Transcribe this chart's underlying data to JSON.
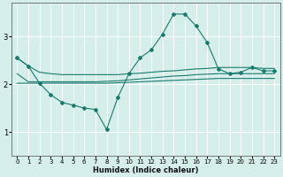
{
  "xlabel": "Humidex (Indice chaleur)",
  "bg_color": "#d6eeea",
  "line_color": "#1a7a6e",
  "grid_color": "#ffffff",
  "xlim": [
    -0.5,
    23.5
  ],
  "ylim": [
    0.5,
    3.7
  ],
  "xticks": [
    0,
    1,
    2,
    3,
    4,
    5,
    6,
    7,
    8,
    9,
    10,
    11,
    12,
    13,
    14,
    15,
    16,
    17,
    18,
    19,
    20,
    21,
    22,
    23
  ],
  "yticks": [
    1,
    2,
    3
  ],
  "main_line": {
    "x": [
      0,
      1,
      2,
      3,
      4,
      5,
      6,
      7,
      8,
      9,
      10,
      11,
      12,
      13,
      14,
      15,
      16,
      17,
      18,
      19,
      20,
      21,
      22,
      23
    ],
    "y": [
      2.55,
      2.38,
      2.02,
      1.78,
      1.62,
      1.56,
      1.5,
      1.47,
      1.05,
      1.72,
      2.22,
      2.55,
      2.72,
      3.05,
      3.47,
      3.47,
      3.22,
      2.87,
      2.32,
      2.22,
      2.25,
      2.35,
      2.28,
      2.28
    ]
  },
  "upper_line": {
    "x": [
      0,
      1,
      2,
      3,
      4,
      5,
      6,
      7,
      8,
      9,
      10,
      11,
      12,
      13,
      14,
      15,
      16,
      17,
      18,
      19,
      20,
      21,
      22,
      23
    ],
    "y": [
      2.55,
      2.38,
      2.25,
      2.22,
      2.2,
      2.2,
      2.2,
      2.2,
      2.2,
      2.2,
      2.22,
      2.23,
      2.25,
      2.27,
      2.28,
      2.3,
      2.32,
      2.33,
      2.35,
      2.35,
      2.35,
      2.35,
      2.33,
      2.33
    ]
  },
  "mid_line": {
    "x": [
      0,
      1,
      2,
      3,
      4,
      5,
      6,
      7,
      8,
      9,
      10,
      11,
      12,
      13,
      14,
      15,
      16,
      17,
      18,
      19,
      20,
      21,
      22,
      23
    ],
    "y": [
      2.22,
      2.05,
      2.05,
      2.05,
      2.05,
      2.05,
      2.05,
      2.05,
      2.06,
      2.07,
      2.09,
      2.11,
      2.13,
      2.15,
      2.17,
      2.18,
      2.2,
      2.21,
      2.22,
      2.22,
      2.22,
      2.22,
      2.22,
      2.22
    ]
  },
  "lower_line": {
    "x": [
      0,
      1,
      2,
      3,
      4,
      5,
      6,
      7,
      8,
      9,
      10,
      11,
      12,
      13,
      14,
      15,
      16,
      17,
      18,
      19,
      20,
      21,
      22,
      23
    ],
    "y": [
      2.02,
      2.02,
      2.02,
      2.02,
      2.02,
      2.02,
      2.02,
      2.02,
      2.02,
      2.03,
      2.04,
      2.05,
      2.06,
      2.07,
      2.08,
      2.09,
      2.1,
      2.11,
      2.12,
      2.12,
      2.12,
      2.12,
      2.12,
      2.12
    ]
  }
}
